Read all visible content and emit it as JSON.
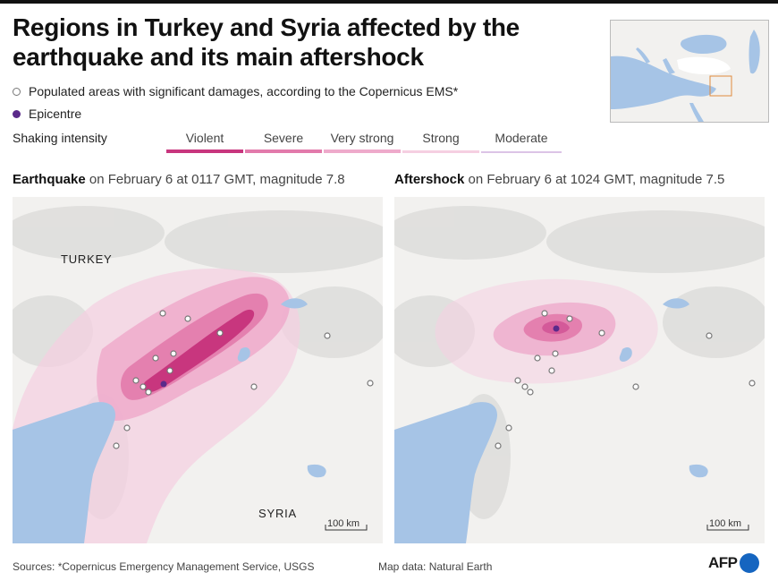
{
  "title": "Regions in Turkey and Syria affected by the earthquake and its main aftershock",
  "legend": {
    "damage_areas": "Populated areas with significant damages, according to the Copernicus EMS*",
    "epicentre": "Epicentre",
    "shaking_intensity_label": "Shaking intensity",
    "intensity_levels": [
      {
        "label": "Violent",
        "color": "#c8367e"
      },
      {
        "label": "Severe",
        "color": "#e27aab"
      },
      {
        "label": "Very strong",
        "color": "#eeaacb"
      },
      {
        "label": "Strong",
        "color": "#f5cfe1"
      },
      {
        "label": "Moderate",
        "color": "#dcc4e6"
      }
    ]
  },
  "colors": {
    "epicentre": "#5b2a8a",
    "water": "#a6c4e6",
    "land": "#f2f1ef",
    "brand": "#1565c0"
  },
  "maps": [
    {
      "event": "Earthquake",
      "details": " on February 6 at 0117 GMT, magnitude 7.8",
      "labels": {
        "turkey": "TURKEY",
        "syria": "SYRIA"
      },
      "scale": "100 km"
    },
    {
      "event": "Aftershock",
      "details": " on February 6 at 1024 GMT, magnitude 7.5",
      "scale": "100 km"
    }
  ],
  "footer": {
    "sources": "Sources: *Copernicus Emergency Management Service, USGS",
    "map_data": "Map data: Natural Earth",
    "logo": "AFP"
  }
}
